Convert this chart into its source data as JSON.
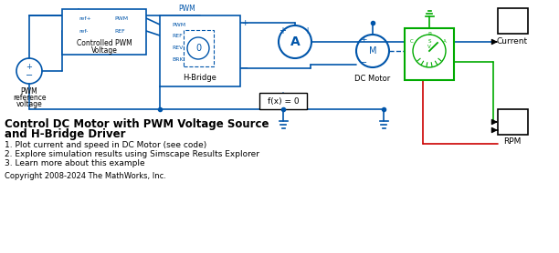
{
  "title_line1": "Control DC Motor with PWM Voltage Source",
  "title_line2": "and H-Bridge Driver",
  "bullet1": "1. Plot current and speed in DC Motor (see code)",
  "bullet2": "2. Explore simulation results using Simscape Results Explorer",
  "bullet3": "3. Learn more about this example",
  "copyright": "Copyright 2008-2024 The MathWorks, Inc.",
  "bg_color": "#ffffff",
  "blue": "#0055AA",
  "green": "#00AA00",
  "red": "#CC0000",
  "block_blue": "#4488CC",
  "text_color": "#000000"
}
